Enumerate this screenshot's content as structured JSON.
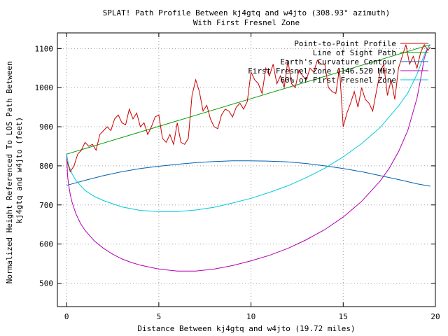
{
  "chart_data": {
    "type": "line",
    "title": "SPLAT! Path Profile Between kj4gtq and w4jto (308.93° azimuth)",
    "subtitle": "With First Fresnel Zone",
    "xlabel": "Distance Between kj4gtq and w4jto (19.72 miles)",
    "ylabel_lines": [
      "Normalized Height Referenced To LOS Path Between",
      "kj4gtq and w4jto (feet)"
    ],
    "xlim": [
      -0.5,
      20
    ],
    "ylim": [
      440,
      1140
    ],
    "xticks": [
      0,
      5,
      10,
      15,
      20
    ],
    "yticks": [
      500,
      600,
      700,
      800,
      900,
      1000,
      1100
    ],
    "grid": true,
    "legend_position": "top-right",
    "series": [
      {
        "name": "Point-to-Point Profile",
        "color": "#cc0000",
        "x": [
          0.0,
          0.2,
          0.4,
          0.6,
          0.8,
          1.0,
          1.2,
          1.4,
          1.6,
          1.8,
          2.0,
          2.2,
          2.4,
          2.6,
          2.8,
          3.0,
          3.2,
          3.4,
          3.6,
          3.8,
          4.0,
          4.2,
          4.4,
          4.6,
          4.8,
          5.0,
          5.2,
          5.4,
          5.6,
          5.8,
          6.0,
          6.2,
          6.4,
          6.6,
          6.8,
          7.0,
          7.2,
          7.4,
          7.6,
          7.8,
          8.0,
          8.2,
          8.4,
          8.6,
          8.8,
          9.0,
          9.2,
          9.4,
          9.6,
          9.8,
          10.0,
          10.2,
          10.4,
          10.6,
          10.8,
          11.0,
          11.2,
          11.4,
          11.6,
          11.8,
          12.0,
          12.2,
          12.4,
          12.6,
          12.8,
          13.0,
          13.2,
          13.4,
          13.6,
          13.8,
          14.0,
          14.2,
          14.4,
          14.6,
          14.8,
          15.0,
          15.2,
          15.4,
          15.6,
          15.8,
          16.0,
          16.2,
          16.4,
          16.6,
          16.8,
          17.0,
          17.2,
          17.4,
          17.6,
          17.8,
          18.0,
          18.2,
          18.4,
          18.6,
          18.8,
          19.0,
          19.2,
          19.4,
          19.6,
          19.72
        ],
        "y": [
          815,
          785,
          800,
          830,
          840,
          860,
          850,
          855,
          840,
          880,
          890,
          900,
          890,
          920,
          930,
          910,
          905,
          945,
          920,
          935,
          900,
          910,
          880,
          900,
          925,
          930,
          870,
          860,
          880,
          855,
          910,
          860,
          855,
          870,
          980,
          1020,
          990,
          940,
          955,
          920,
          900,
          895,
          930,
          945,
          940,
          925,
          950,
          960,
          945,
          965,
          1040,
          1020,
          1010,
          985,
          1050,
          1030,
          1060,
          1010,
          1030,
          1000,
          1070,
          1010,
          1000,
          1045,
          1030,
          1020,
          1050,
          1040,
          1070,
          1060,
          1060,
          1000,
          990,
          985,
          1050,
          900,
          935,
          960,
          990,
          950,
          1000,
          970,
          960,
          940,
          990,
          1040,
          1060,
          980,
          1020,
          970,
          1050,
          1080,
          1110,
          1060,
          1080,
          1050,
          1090,
          1110,
          1095,
          1104
        ]
      },
      {
        "name": "Line of Sight Path",
        "color": "#00a000",
        "x": [
          0,
          19.72
        ],
        "y": [
          830,
          1110
        ]
      },
      {
        "name": "Earth's Curvature Contour",
        "color": "#0060ad",
        "x": [
          0,
          1,
          2,
          3,
          4,
          5,
          6,
          7,
          8,
          9,
          9.86,
          11,
          12,
          13,
          14,
          15,
          16,
          17,
          18,
          19,
          19.72
        ],
        "y": [
          750,
          763,
          775,
          785,
          793,
          799,
          804,
          808,
          811,
          813,
          813,
          812,
          810,
          806,
          800,
          793,
          785,
          775,
          765,
          754,
          748
        ]
      },
      {
        "name": "First Fresnel Zone (146.520 MHz)",
        "color": "#b000b0",
        "x": [
          0,
          0.05,
          0.1,
          0.2,
          0.3,
          0.5,
          0.75,
          1,
          1.5,
          2,
          2.5,
          3,
          3.5,
          4,
          5,
          6,
          6.5,
          7,
          8,
          9,
          10,
          11,
          12,
          13,
          14,
          15,
          16,
          17,
          17.5,
          18,
          18.5,
          19,
          19.2,
          19.4,
          19.6,
          19.72
        ],
        "y": [
          830,
          775,
          755,
          726,
          706,
          678,
          653,
          635,
          608,
          589,
          574,
          562,
          553,
          546,
          536,
          531,
          531,
          531,
          536,
          545,
          557,
          571,
          589,
          611,
          637,
          669,
          709,
          761,
          794,
          836,
          890,
          973,
          1022,
          1076,
          1103,
          1110
        ]
      },
      {
        "name": "60% of First Fresnel Zone",
        "color": "#00c8d8",
        "x": [
          0,
          0.1,
          0.3,
          0.5,
          1,
          1.5,
          2,
          3,
          4,
          5,
          6,
          7,
          8,
          9,
          10,
          11,
          12,
          13,
          14,
          15,
          16,
          17,
          18,
          18.5,
          19,
          19.3,
          19.5,
          19.72
        ],
        "y": [
          830,
          803,
          779,
          763,
          737,
          722,
          711,
          695,
          686,
          683,
          683,
          687,
          694,
          705,
          717,
          732,
          749,
          770,
          794,
          823,
          857,
          898,
          953,
          986,
          1034,
          1072,
          1095,
          1110
        ]
      }
    ]
  }
}
